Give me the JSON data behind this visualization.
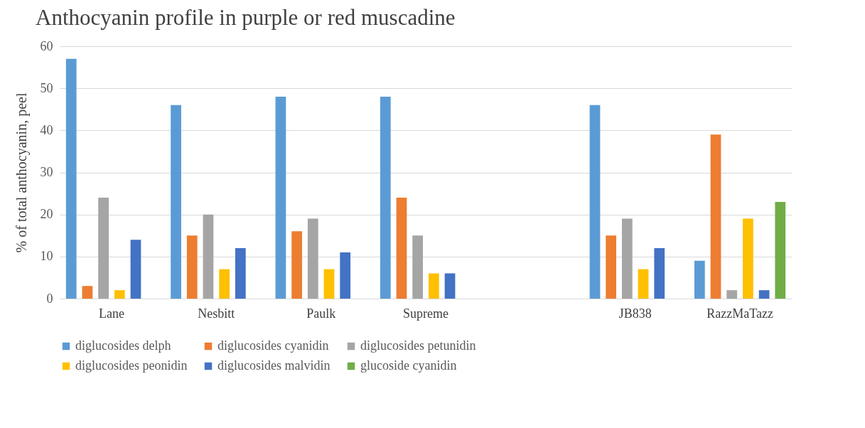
{
  "chart_data": {
    "type": "bar",
    "title": "Anthocyanin profile  in purple or red muscadine",
    "ylabel": "% of total anthocyanin, peel",
    "categories": [
      "Lane",
      "Nesbitt",
      "Paulk",
      "Supreme",
      null,
      "JB838",
      "RazzMaTazz"
    ],
    "series": [
      {
        "name": "diglucosides delph",
        "color": "#5b9bd5",
        "values": [
          57,
          46,
          48,
          48,
          null,
          46,
          9
        ]
      },
      {
        "name": "diglucosides cyanidin",
        "color": "#ed7d31",
        "values": [
          3,
          15,
          16,
          24,
          null,
          15,
          39
        ]
      },
      {
        "name": "diglucosides petunidin",
        "color": "#a5a5a5",
        "values": [
          24,
          20,
          19,
          15,
          null,
          19,
          2
        ]
      },
      {
        "name": "diglucosides peonidin",
        "color": "#ffc000",
        "values": [
          2,
          7,
          7,
          6,
          null,
          7,
          19
        ]
      },
      {
        "name": "diglucosides malvidin",
        "color": "#4472c4",
        "values": [
          14,
          12,
          11,
          6,
          null,
          12,
          2
        ]
      },
      {
        "name": "glucoside cyanidin",
        "color": "#70ad47",
        "values": [
          null,
          null,
          null,
          null,
          null,
          null,
          23
        ]
      }
    ],
    "ylim": [
      0,
      60
    ],
    "yticks": [
      0,
      10,
      20,
      30,
      40,
      50,
      60
    ],
    "grid": "y",
    "legend": "bottom"
  }
}
